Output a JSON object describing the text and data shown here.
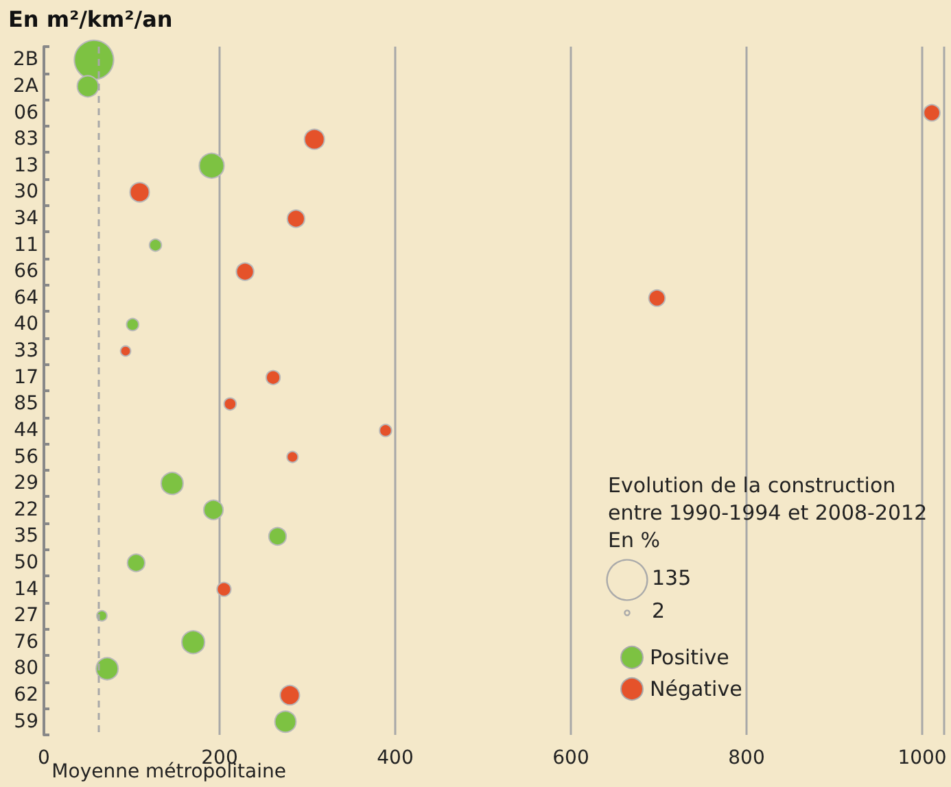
{
  "chart_data": {
    "type": "bubble",
    "ylabel": "En m²/km²/an",
    "categories": [
      "2B",
      "2A",
      "06",
      "83",
      "13",
      "30",
      "34",
      "11",
      "66",
      "64",
      "40",
      "33",
      "17",
      "85",
      "44",
      "56",
      "29",
      "22",
      "35",
      "50",
      "14",
      "27",
      "76",
      "80",
      "62",
      "59"
    ],
    "series": [
      {
        "name": "Positive",
        "color": "#7dc242",
        "values": [
          57,
          50,
          null,
          null,
          191,
          null,
          null,
          127,
          null,
          null,
          101,
          null,
          null,
          null,
          null,
          null,
          146,
          193,
          266,
          105,
          null,
          66,
          170,
          72,
          null,
          275
        ],
        "sizes": [
          128,
          37,
          null,
          null,
          51,
          null,
          null,
          12,
          null,
          null,
          12,
          null,
          null,
          null,
          null,
          null,
          40,
          31,
          25,
          25,
          null,
          8.5,
          43,
          40,
          null,
          37
        ]
      },
      {
        "name": "Négative",
        "color": "#e5522a",
        "values": [
          null,
          null,
          1011,
          308,
          null,
          109,
          287,
          null,
          229,
          698,
          null,
          93,
          261,
          212,
          389,
          283,
          null,
          null,
          null,
          null,
          205,
          null,
          null,
          null,
          280,
          null
        ],
        "sizes": [
          null,
          null,
          22,
          33,
          null,
          31,
          25,
          null,
          25,
          22,
          null,
          8.5,
          16,
          12,
          12,
          10,
          null,
          null,
          null,
          null,
          16,
          null,
          null,
          null,
          31,
          null
        ]
      }
    ],
    "size_legend": [
      135,
      2
    ],
    "legend_title": "Evolution de la construction\nentre 1990-1994 et 2008-2012\nEn %",
    "legend": "bottom right",
    "orientation": "horizontal",
    "xlim": [
      0,
      1025
    ],
    "xticks": [
      0,
      200,
      400,
      600,
      800,
      1000
    ],
    "grid": "x",
    "ref_lines": [
      {
        "axis": "x",
        "value": 62,
        "label": "Moyenne métropolitaine",
        "line_style": "dashed",
        "color": "#a8a8a8"
      }
    ]
  }
}
